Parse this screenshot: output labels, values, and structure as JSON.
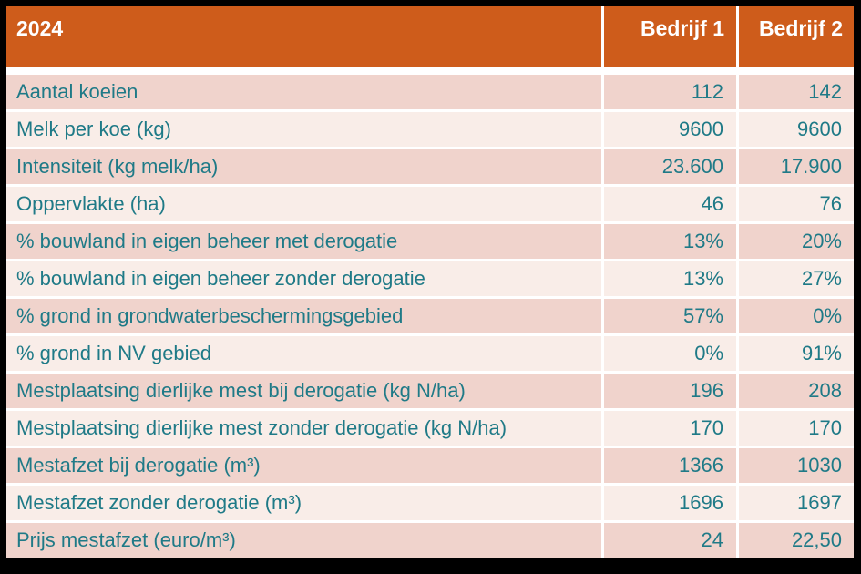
{
  "colors": {
    "header_bg": "#CE5C1B",
    "header_text": "#FFFFFF",
    "row_dark": "#F0D3CC",
    "row_light": "#F9EDE8",
    "cell_text": "#1F7A87",
    "gap": "#FFFFFF",
    "frame": "#000000"
  },
  "table": {
    "header": {
      "year": "2024",
      "col1": "Bedrijf 1",
      "col2": "Bedrijf 2"
    },
    "rows": [
      {
        "label": "Aantal koeien",
        "bedrijf1": "112",
        "bedrijf2": "142"
      },
      {
        "label": "Melk per koe (kg)",
        "bedrijf1": "9600",
        "bedrijf2": "9600"
      },
      {
        "label": "Intensiteit (kg melk/ha)",
        "bedrijf1": "23.600",
        "bedrijf2": "17.900"
      },
      {
        "label": "Oppervlakte (ha)",
        "bedrijf1": "46",
        "bedrijf2": "76"
      },
      {
        "label": "% bouwland in eigen beheer met derogatie",
        "bedrijf1": "13%",
        "bedrijf2": "20%"
      },
      {
        "label": "% bouwland in eigen beheer zonder derogatie",
        "bedrijf1": "13%",
        "bedrijf2": "27%"
      },
      {
        "label": "% grond in grondwaterbeschermingsgebied",
        "bedrijf1": "57%",
        "bedrijf2": "0%"
      },
      {
        "label": "% grond in NV gebied",
        "bedrijf1": "0%",
        "bedrijf2": "91%"
      },
      {
        "label": "Mestplaatsing dierlijke mest bij derogatie (kg N/ha)",
        "bedrijf1": "196",
        "bedrijf2": "208"
      },
      {
        "label": "Mestplaatsing dierlijke mest zonder derogatie (kg N/ha)",
        "bedrijf1": "170",
        "bedrijf2": "170"
      },
      {
        "label": "Mestafzet bij derogatie (m³)",
        "bedrijf1": "1366",
        "bedrijf2": "1030"
      },
      {
        "label": "Mestafzet zonder derogatie (m³)",
        "bedrijf1": "1696",
        "bedrijf2": "1697"
      },
      {
        "label": "Prijs mestafzet (euro/m³)",
        "bedrijf1": "24",
        "bedrijf2": "22,50"
      }
    ]
  }
}
